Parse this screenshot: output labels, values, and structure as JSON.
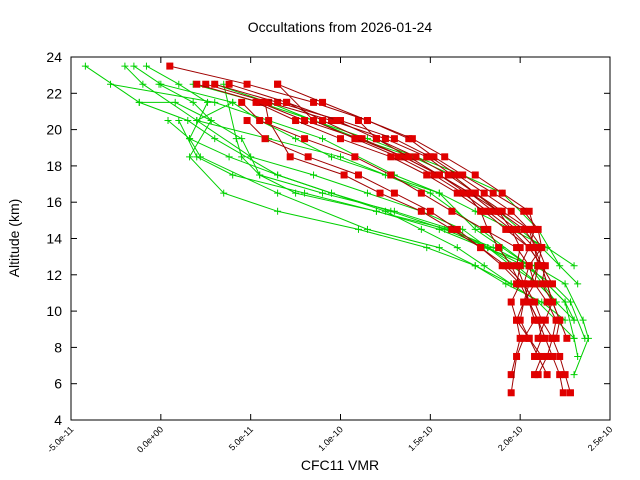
{
  "chart_data": {
    "type": "line",
    "title": "Occultations from 2026-01-24",
    "xlabel": "CFC11 VMR",
    "ylabel": "Altitude (km)",
    "xlim": [
      -5e-11,
      2.5e-10
    ],
    "ylim": [
      4,
      24
    ],
    "xticks": [
      -5e-11,
      0,
      5e-11,
      1e-10,
      1.5e-10,
      2e-10,
      2.5e-10
    ],
    "xtick_labels": [
      "-5.0e-11",
      "0.0e+00",
      "5.0e-11",
      "1.0e-10",
      "1.5e-10",
      "2.0e-10",
      "2.5e-10"
    ],
    "yticks": [
      4,
      6,
      8,
      10,
      12,
      14,
      16,
      18,
      20,
      22,
      24
    ],
    "ytick_labels": [
      "4",
      "6",
      "8",
      "10",
      "12",
      "14",
      "16",
      "18",
      "20",
      "22",
      "24"
    ],
    "grid": false,
    "legend": "none",
    "colors": {
      "green": "#00d000",
      "red": "#e00000",
      "dark_red": "#a00000"
    },
    "series_green": [
      {
        "name": "g1",
        "x": [
          -4.2e-11,
          -1.2e-11,
          1.5e-11,
          3e-11,
          6.5e-11,
          9.5e-11,
          1.25e-10,
          1.45e-10,
          1.65e-10,
          1.8e-10,
          1.95e-10,
          2.1e-10,
          2.2e-10,
          2.3e-10,
          2.32e-10
        ],
        "y": [
          23.5,
          21.5,
          20.5,
          19.5,
          17.5,
          16.5,
          15.5,
          14.5,
          13.5,
          12.5,
          11.5,
          10.5,
          9.5,
          8.5,
          7.5
        ]
      },
      {
        "name": "g2",
        "x": [
          -2.8e-11,
          3e-11,
          9e-11,
          1.3e-10,
          1.55e-10,
          1.75e-10,
          1.9e-10,
          2.05e-10,
          2.15e-10,
          2.25e-10,
          2.3e-10
        ],
        "y": [
          22.5,
          21.5,
          19.5,
          17.5,
          16.5,
          14.5,
          13.5,
          12.5,
          11.5,
          10.5,
          9.5
        ]
      },
      {
        "name": "g3",
        "x": [
          -2e-11,
          -1e-11,
          2e-11,
          5e-11,
          8.5e-11,
          1.15e-10,
          1.45e-10,
          1.68e-10,
          1.82e-10,
          1.98e-10,
          2.1e-10,
          2.2e-10,
          2.3e-10
        ],
        "y": [
          23.5,
          22.5,
          20.5,
          18.5,
          17.5,
          16.5,
          15.5,
          14.5,
          13.5,
          12.5,
          11.5,
          10.5,
          9.5
        ]
      },
      {
        "name": "g4",
        "x": [
          -1.5e-11,
          0.0,
          4e-11,
          2e-11,
          6e-11,
          1e-10,
          1.5e-10,
          1.78e-10,
          2.05e-10,
          2.2e-10
        ],
        "y": [
          23.5,
          22.5,
          21.5,
          20.5,
          19.5,
          18.5,
          16.5,
          14.5,
          12.5,
          10.5
        ]
      },
      {
        "name": "g5",
        "x": [
          -8e-12,
          1e-11,
          2.6e-11,
          1.6e-11,
          2.2e-11,
          6.5e-11,
          1.15e-10,
          1.55e-10,
          1.75e-10,
          1.95e-10
        ],
        "y": [
          23.5,
          22.5,
          21.5,
          19.5,
          18.5,
          16.5,
          14.5,
          13.5,
          12.5,
          11.5
        ]
      },
      {
        "name": "g6",
        "x": [
          -1e-12,
          1.8e-11,
          2.8e-11,
          4.5e-11,
          5.5e-11,
          7.5e-11,
          1.2e-10,
          1.55e-10,
          1.8e-10,
          2.08e-10,
          2.25e-10,
          2.35e-10,
          2.38e-10,
          2.3e-10
        ],
        "y": [
          22.5,
          21.5,
          20.5,
          19.5,
          17.5,
          16.5,
          15.5,
          14.5,
          13.5,
          12.5,
          11.5,
          9.5,
          8.5,
          6.5
        ]
      },
      {
        "name": "g7",
        "x": [
          -1.2e-11,
          8e-12,
          2.8e-11,
          1.6e-11,
          3.5e-11,
          6.5e-11,
          1.1e-10,
          1.48e-10,
          1.75e-10,
          1.92e-10,
          2.12e-10,
          2.25e-10
        ],
        "y": [
          21.5,
          21.5,
          20.5,
          18.5,
          16.5,
          15.5,
          14.5,
          13.5,
          12.5,
          11.5,
          10.5,
          9.5
        ]
      },
      {
        "name": "g8",
        "x": [
          4e-12,
          1.6e-11,
          3.8e-11,
          6.5e-11,
          9.5e-11,
          1.28e-10,
          1.58e-10,
          1.82e-10,
          2.02e-10,
          2.18e-10,
          2.28e-10,
          2.36e-10
        ],
        "y": [
          20.5,
          19.5,
          18.5,
          17.5,
          16.5,
          15.5,
          14.5,
          13.5,
          12.5,
          11.5,
          10.5,
          8.5
        ]
      },
      {
        "name": "g9",
        "x": [
          1e-11,
          2e-11,
          4e-11,
          8e-11,
          1.2e-10,
          1.6e-10,
          1.85e-10,
          2.05e-10,
          2.25e-10,
          2.3e-10
        ],
        "y": [
          20.5,
          18.5,
          17.5,
          16.5,
          15.5,
          14.5,
          13.5,
          12.5,
          10.5,
          8.5
        ]
      },
      {
        "name": "g10",
        "x": [
          3.5e-11,
          4.2e-11,
          4.5e-11,
          5.5e-11,
          9e-11,
          1.3e-10,
          1.62e-10,
          1.82e-10,
          1.95e-10,
          2.1e-10,
          2.2e-10
        ],
        "y": [
          22.5,
          19.5,
          18.5,
          17.5,
          16.5,
          15.5,
          14.5,
          13.5,
          12.5,
          11.5,
          10.5
        ]
      },
      {
        "name": "g11",
        "x": [
          4e-11,
          5.5e-11,
          7.5e-11,
          9.5e-11,
          1.25e-10,
          1.55e-10,
          1.75e-10,
          1.95e-10,
          2.15e-10,
          2.3e-10
        ],
        "y": [
          21.5,
          20.5,
          19.5,
          18.5,
          17.5,
          16.5,
          15.5,
          14.5,
          13.5,
          12.5
        ]
      },
      {
        "name": "g12",
        "x": [
          3e-11,
          6e-11,
          8.5e-11,
          1.1e-10,
          1.4e-10,
          1.62e-10,
          1.88e-10,
          2.12e-10,
          2.32e-10
        ],
        "y": [
          22.5,
          21.5,
          20.5,
          19.5,
          18.5,
          17.5,
          15.5,
          13.5,
          11.5
        ]
      },
      {
        "name": "g13",
        "x": [
          1.8e-11,
          5.5e-11,
          8.5e-11,
          1.15e-10,
          1.42e-10,
          1.68e-10,
          1.9e-10,
          2.1e-10,
          2.22e-10
        ],
        "y": [
          22.5,
          21.5,
          20.5,
          19.5,
          18.5,
          17.5,
          16.5,
          14.5,
          12.5
        ]
      }
    ],
    "series_red": [
      {
        "name": "r1",
        "x": [
          5e-12,
          4.8e-11,
          8.5e-11,
          1.15e-10,
          1.38e-10,
          1.52e-10,
          1.68e-10,
          1.85e-10,
          2.02e-10,
          2.1e-10,
          2.12e-10,
          2.05e-10,
          2.02e-10,
          2.08e-10,
          2.12e-10,
          2.18e-10,
          2.22e-10,
          2.25e-10,
          2.28e-10
        ],
        "y": [
          23.5,
          22.5,
          21.5,
          20.5,
          19.5,
          18.5,
          17.5,
          16.5,
          15.5,
          14.5,
          13.5,
          12.5,
          11.5,
          10.5,
          9.5,
          8.5,
          7.5,
          6.5,
          5.5
        ]
      },
      {
        "name": "r2",
        "x": [
          2.5e-11,
          6e-11,
          9.5e-11,
          1.25e-10,
          1.48e-10,
          1.62e-10,
          1.75e-10,
          1.9e-10,
          2.05e-10,
          2.12e-10,
          2.1e-10,
          2.08e-10,
          2.15e-10,
          2.2e-10,
          2.18e-10,
          2.15e-10,
          2.1e-10
        ],
        "y": [
          22.5,
          21.5,
          20.5,
          19.5,
          18.5,
          17.5,
          16.5,
          15.5,
          14.5,
          13.5,
          12.5,
          11.5,
          10.5,
          9.5,
          8.5,
          7.5,
          6.5
        ]
      },
      {
        "name": "r3",
        "x": [
          2e-11,
          5.5e-11,
          8e-11,
          1.1e-10,
          1.35e-10,
          1.55e-10,
          1.7e-10,
          1.78e-10,
          1.82e-10,
          1.88e-10,
          1.95e-10,
          2e-10,
          1.95e-10,
          1.98e-10,
          2e-10,
          1.95e-10
        ],
        "y": [
          22.5,
          21.5,
          20.5,
          19.5,
          18.5,
          17.5,
          16.5,
          15.5,
          14.5,
          13.5,
          12.5,
          11.5,
          10.5,
          9.5,
          8.5,
          6.5
        ]
      },
      {
        "name": "r4",
        "x": [
          3e-11,
          6.5e-11,
          1e-10,
          1.3e-10,
          1.5e-10,
          1.65e-10,
          1.8e-10,
          1.95e-10,
          2.05e-10,
          2.08e-10,
          2.12e-10,
          2.15e-10,
          2.18e-10,
          2.22e-10,
          2.2e-10
        ],
        "y": [
          22.5,
          21.5,
          20.5,
          19.5,
          18.5,
          17.5,
          16.5,
          15.5,
          14.5,
          13.5,
          12.5,
          11.5,
          10.5,
          9.5,
          8.5
        ]
      },
      {
        "name": "r5",
        "x": [
          4.5e-11,
          5.5e-11,
          8e-11,
          1.08e-10,
          1.28e-10,
          1.45e-10,
          1.62e-10,
          1.8e-10,
          1.98e-10,
          2.05e-10,
          2.08e-10,
          2.02e-10,
          1.98e-10,
          2.05e-10,
          2.12e-10,
          2.08e-10
        ],
        "y": [
          21.5,
          20.5,
          19.5,
          18.5,
          17.5,
          16.5,
          15.5,
          14.5,
          13.5,
          12.5,
          11.5,
          10.5,
          9.5,
          8.5,
          7.5,
          6.5
        ]
      },
      {
        "name": "r6",
        "x": [
          3.8e-11,
          7e-11,
          9.8e-11,
          1.2e-10,
          1.42e-10,
          1.6e-10,
          1.75e-10,
          1.88e-10,
          1.95e-10,
          2e-10,
          1.98e-10,
          2.02e-10,
          2.05e-10,
          2.08e-10,
          2.02e-10,
          1.98e-10,
          1.95e-10
        ],
        "y": [
          22.5,
          21.5,
          20.5,
          19.5,
          18.5,
          17.5,
          16.5,
          15.5,
          14.5,
          13.5,
          12.5,
          11.5,
          10.5,
          9.5,
          8.5,
          7.5,
          5.5
        ]
      },
      {
        "name": "r7",
        "x": [
          5.8e-11,
          6e-11,
          7.2e-11,
          1.02e-10,
          1.22e-10,
          1.45e-10,
          1.62e-10,
          1.78e-10,
          1.92e-10,
          2.02e-10,
          2.05e-10,
          2.1e-10,
          2.14e-10,
          2.18e-10,
          2.22e-10,
          2.24e-10
        ],
        "y": [
          21.5,
          20.5,
          18.5,
          17.5,
          16.5,
          15.5,
          14.5,
          13.5,
          12.5,
          11.5,
          10.5,
          9.5,
          8.5,
          7.5,
          6.5,
          5.5
        ]
      },
      {
        "name": "r8",
        "x": [
          4.8e-11,
          5.8e-11,
          8.2e-11,
          1.1e-10,
          1.3e-10,
          1.5e-10,
          1.65e-10,
          1.78e-10,
          1.9e-10,
          2e-10,
          2.05e-10,
          2.1e-10,
          2.12e-10,
          2.08e-10
        ],
        "y": [
          20.5,
          19.5,
          18.5,
          17.5,
          16.5,
          15.5,
          14.5,
          13.5,
          12.5,
          11.5,
          10.5,
          9.5,
          8.5,
          7.5
        ]
      },
      {
        "name": "r9",
        "x": [
          7e-11,
          9e-11,
          1.12e-10,
          1.35e-10,
          1.55e-10,
          1.72e-10,
          1.85e-10,
          1.98e-10,
          2.08e-10,
          2.1e-10,
          2.05e-10,
          2.02e-10,
          2e-10,
          2.05e-10,
          2.1e-10,
          2.15e-10
        ],
        "y": [
          21.5,
          20.5,
          19.5,
          18.5,
          17.5,
          16.5,
          15.5,
          14.5,
          13.5,
          12.5,
          11.5,
          10.5,
          9.5,
          8.5,
          7.5,
          6.5
        ]
      },
      {
        "name": "r10",
        "x": [
          6.5e-11,
          8.5e-11,
          1.08e-10,
          1.32e-10,
          1.52e-10,
          1.68e-10,
          1.82e-10,
          1.95e-10,
          2.05e-10,
          2.12e-10,
          2.15e-10,
          2.18e-10,
          2.14e-10,
          2.1e-10
        ],
        "y": [
          22.5,
          20.5,
          19.5,
          18.5,
          17.5,
          16.5,
          15.5,
          14.5,
          13.5,
          12.5,
          11.5,
          10.5,
          9.5,
          8.5
        ]
      },
      {
        "name": "r11",
        "x": [
          1.1e-10,
          1.2e-10,
          1.38e-10,
          1.55e-10,
          1.72e-10,
          1.88e-10,
          2.02e-10,
          2.1e-10,
          2.14e-10,
          2.12e-10,
          2.18e-10,
          2.22e-10,
          2.26e-10
        ],
        "y": [
          20.5,
          19.5,
          18.5,
          17.5,
          16.5,
          15.5,
          14.5,
          13.5,
          12.5,
          11.5,
          10.5,
          9.5,
          8.5
        ]
      },
      {
        "name": "r12",
        "x": [
          6.5e-11,
          9e-11,
          1.15e-10,
          1.4e-10,
          1.58e-10,
          1.75e-10,
          1.9e-10,
          2.05e-10,
          2.08e-10,
          2.05e-10,
          2e-10,
          1.98e-10
        ],
        "y": [
          22.5,
          21.5,
          20.5,
          19.5,
          18.5,
          17.5,
          16.5,
          15.5,
          14.5,
          13.5,
          12.5,
          11.5
        ]
      },
      {
        "name": "r13",
        "x": [
          5.3e-11,
          7.5e-11,
          1e-10,
          1.28e-10,
          1.48e-10,
          1.65e-10,
          1.8e-10,
          1.92e-10,
          2.05e-10,
          2.12e-10,
          2.18e-10
        ],
        "y": [
          21.5,
          20.5,
          19.5,
          18.5,
          17.5,
          16.5,
          15.5,
          14.5,
          13.5,
          12.5,
          11.5
        ]
      }
    ]
  }
}
